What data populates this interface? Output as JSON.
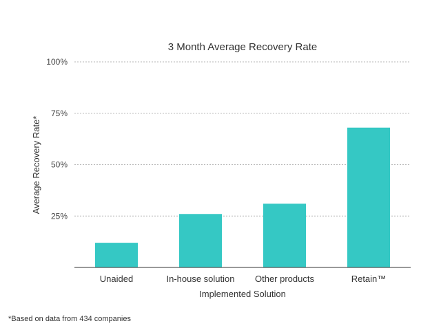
{
  "chart_data": {
    "type": "bar",
    "title": "3 Month Average Recovery Rate",
    "xlabel": "Implemented Solution",
    "ylabel": "Average Recovery Rate*",
    "categories": [
      "Unaided",
      "In-house solution",
      "Other products",
      "Retain™"
    ],
    "values": [
      12,
      26,
      31,
      68
    ],
    "ylim": [
      0,
      100
    ],
    "yticks": [
      25,
      50,
      75,
      100
    ],
    "ytick_labels": [
      "25%",
      "50%",
      "75%",
      "100%"
    ],
    "grid": true,
    "bar_color": "#35c8c4",
    "footnote": "*Based on data from 434 companies"
  }
}
